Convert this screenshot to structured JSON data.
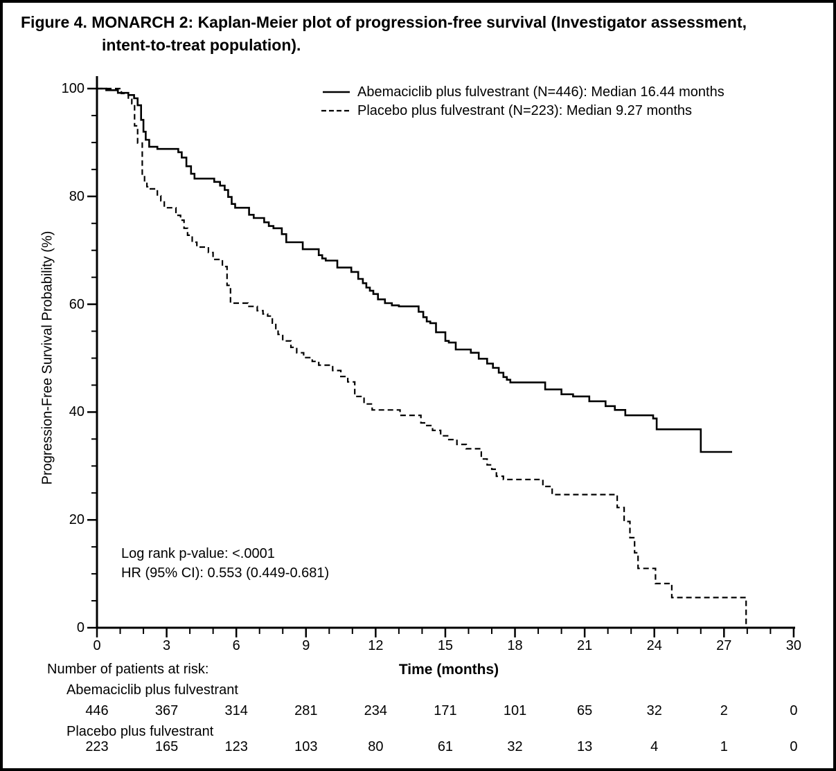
{
  "figure": {
    "title_line1": "Figure 4. MONARCH 2: Kaplan-Meier plot of progression-free survival (Investigator assessment,",
    "title_line2": "intent-to-treat population)."
  },
  "chart_data": {
    "type": "line",
    "subtype": "kaplan-meier-step",
    "title": "MONARCH 2: Kaplan-Meier plot of progression-free survival",
    "xlabel": "Time (months)",
    "ylabel": "Progression-Free Survival Probability (%)",
    "xlim": [
      0,
      30
    ],
    "ylim": [
      0,
      100
    ],
    "x_major_ticks": [
      0,
      3,
      6,
      9,
      12,
      15,
      18,
      21,
      24,
      27,
      30
    ],
    "x_minor_step": 1,
    "y_major_ticks": [
      0,
      20,
      40,
      60,
      80,
      100
    ],
    "y_minor_step": 5,
    "grid": false,
    "legend_position": "top-center",
    "line_color": "#000000",
    "annotations": [
      "Log rank p-value: <.0001",
      "HR (95% CI): 0.553 (0.449-0.681)"
    ],
    "series": [
      {
        "name": "Abemaciclib plus fulvestrant (N=446): Median 16.44 months",
        "line_style": "solid",
        "color": "#000000",
        "median_months": 16.44,
        "n": 446,
        "points": [
          [
            0,
            100
          ],
          [
            0.4,
            99.7
          ],
          [
            0.9,
            99.2
          ],
          [
            1.35,
            98.8
          ],
          [
            1.6,
            98.2
          ],
          [
            1.75,
            96.9
          ],
          [
            1.9,
            94.2
          ],
          [
            2.0,
            92.0
          ],
          [
            2.1,
            90.5
          ],
          [
            2.25,
            89.2
          ],
          [
            2.6,
            88.8
          ],
          [
            3.5,
            88.2
          ],
          [
            3.65,
            87.2
          ],
          [
            3.85,
            85.6
          ],
          [
            4.05,
            84.2
          ],
          [
            4.2,
            83.3
          ],
          [
            5.05,
            82.7
          ],
          [
            5.3,
            82.0
          ],
          [
            5.5,
            81.2
          ],
          [
            5.65,
            79.9
          ],
          [
            5.8,
            78.6
          ],
          [
            5.95,
            77.9
          ],
          [
            6.55,
            76.6
          ],
          [
            6.75,
            76.0
          ],
          [
            7.2,
            75.2
          ],
          [
            7.4,
            74.5
          ],
          [
            7.6,
            74.1
          ],
          [
            7.96,
            73.0
          ],
          [
            8.15,
            71.5
          ],
          [
            8.86,
            70.2
          ],
          [
            9.55,
            69.1
          ],
          [
            9.7,
            68.5
          ],
          [
            9.85,
            68.1
          ],
          [
            10.35,
            66.8
          ],
          [
            10.95,
            66.0
          ],
          [
            11.25,
            64.7
          ],
          [
            11.45,
            63.9
          ],
          [
            11.6,
            63.1
          ],
          [
            11.75,
            62.5
          ],
          [
            11.9,
            61.9
          ],
          [
            12.1,
            60.9
          ],
          [
            12.4,
            60.2
          ],
          [
            12.7,
            59.8
          ],
          [
            13.0,
            59.6
          ],
          [
            13.85,
            58.6
          ],
          [
            14.05,
            57.6
          ],
          [
            14.2,
            56.8
          ],
          [
            14.35,
            56.5
          ],
          [
            14.6,
            54.8
          ],
          [
            15.0,
            53.2
          ],
          [
            15.15,
            52.9
          ],
          [
            15.45,
            51.6
          ],
          [
            16.1,
            51.0
          ],
          [
            16.44,
            49.9
          ],
          [
            16.8,
            49.0
          ],
          [
            17.05,
            48.2
          ],
          [
            17.3,
            47.3
          ],
          [
            17.5,
            46.5
          ],
          [
            17.65,
            46.0
          ],
          [
            17.8,
            45.5
          ],
          [
            19.3,
            44.2
          ],
          [
            20.0,
            43.3
          ],
          [
            20.5,
            42.9
          ],
          [
            21.2,
            42.0
          ],
          [
            21.9,
            41.1
          ],
          [
            22.3,
            40.4
          ],
          [
            22.75,
            39.4
          ],
          [
            23.95,
            38.8
          ],
          [
            24.1,
            36.8
          ],
          [
            26.0,
            32.6
          ],
          [
            27.35,
            32.6
          ]
        ]
      },
      {
        "name": "Placebo plus fulvestrant (N=223): Median 9.27 months",
        "line_style": "dashed",
        "color": "#000000",
        "median_months": 9.27,
        "n": 223,
        "points": [
          [
            0,
            100
          ],
          [
            1.05,
            99.1
          ],
          [
            1.35,
            98.0
          ],
          [
            1.5,
            97.2
          ],
          [
            1.62,
            93.1
          ],
          [
            1.75,
            89.9
          ],
          [
            1.95,
            84.0
          ],
          [
            2.05,
            82.7
          ],
          [
            2.15,
            81.8
          ],
          [
            2.3,
            81.4
          ],
          [
            2.6,
            80.1
          ],
          [
            2.75,
            79.2
          ],
          [
            2.9,
            77.9
          ],
          [
            3.4,
            76.5
          ],
          [
            3.6,
            75.6
          ],
          [
            3.75,
            74.1
          ],
          [
            3.9,
            72.8
          ],
          [
            4.1,
            71.5
          ],
          [
            4.3,
            70.6
          ],
          [
            4.8,
            69.6
          ],
          [
            5.0,
            68.3
          ],
          [
            5.4,
            67.0
          ],
          [
            5.6,
            63.5
          ],
          [
            5.75,
            60.2
          ],
          [
            6.5,
            59.6
          ],
          [
            6.9,
            58.8
          ],
          [
            7.15,
            58.2
          ],
          [
            7.35,
            57.8
          ],
          [
            7.55,
            56.5
          ],
          [
            7.7,
            55.5
          ],
          [
            7.8,
            54.4
          ],
          [
            8.0,
            53.2
          ],
          [
            8.35,
            52.0
          ],
          [
            8.6,
            51.0
          ],
          [
            8.9,
            50.1
          ],
          [
            9.27,
            49.4
          ],
          [
            9.55,
            48.7
          ],
          [
            10.15,
            47.7
          ],
          [
            10.5,
            46.6
          ],
          [
            10.8,
            45.6
          ],
          [
            11.1,
            42.9
          ],
          [
            11.5,
            41.5
          ],
          [
            11.85,
            40.4
          ],
          [
            13.05,
            39.4
          ],
          [
            13.95,
            38.0
          ],
          [
            14.15,
            37.5
          ],
          [
            14.45,
            36.6
          ],
          [
            14.8,
            35.6
          ],
          [
            15.1,
            34.9
          ],
          [
            15.5,
            34.0
          ],
          [
            15.9,
            33.2
          ],
          [
            16.55,
            31.3
          ],
          [
            16.8,
            30.2
          ],
          [
            17.0,
            29.4
          ],
          [
            17.2,
            28.1
          ],
          [
            17.5,
            27.5
          ],
          [
            19.2,
            26.2
          ],
          [
            19.6,
            24.7
          ],
          [
            22.4,
            22.3
          ],
          [
            22.7,
            19.7
          ],
          [
            22.95,
            16.7
          ],
          [
            23.15,
            13.9
          ],
          [
            23.3,
            11.0
          ],
          [
            24.05,
            8.2
          ],
          [
            24.75,
            5.6
          ],
          [
            27.95,
            0
          ]
        ]
      }
    ]
  },
  "risk_table": {
    "title": "Number of patients at risk:",
    "time_label": "Time (months)",
    "times": [
      0,
      3,
      6,
      9,
      12,
      15,
      18,
      21,
      24,
      27,
      30
    ],
    "rows": [
      {
        "label": "Abemaciclib plus fulvestrant",
        "counts": [
          446,
          367,
          314,
          281,
          234,
          171,
          101,
          65,
          32,
          2,
          0
        ]
      },
      {
        "label": "Placebo plus fulvestrant",
        "counts": [
          223,
          165,
          123,
          103,
          80,
          61,
          32,
          13,
          4,
          1,
          0
        ]
      }
    ]
  }
}
